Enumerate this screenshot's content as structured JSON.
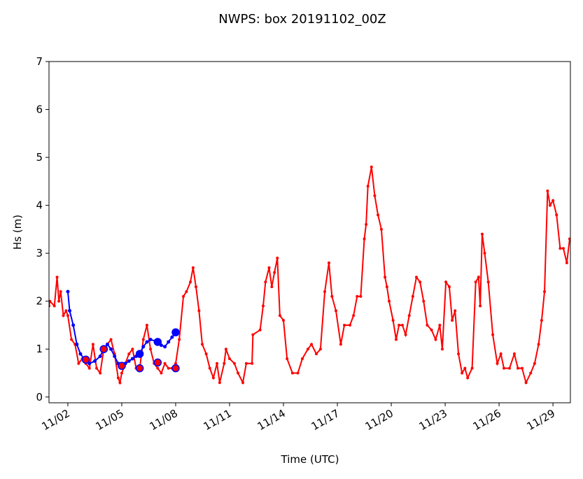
{
  "chart_data": {
    "type": "line",
    "title": "NWPS: box 20191102_00Z",
    "xlabel": "Time (UTC)",
    "ylabel": "Hs (m)",
    "xlim": [
      0.95,
      29.97
    ],
    "ylim": [
      -0.12,
      7.0
    ],
    "xticks": [
      {
        "value": 2,
        "label": "11/02"
      },
      {
        "value": 5,
        "label": "11/05"
      },
      {
        "value": 8,
        "label": "11/08"
      },
      {
        "value": 11,
        "label": "11/11"
      },
      {
        "value": 14,
        "label": "11/14"
      },
      {
        "value": 17,
        "label": "11/17"
      },
      {
        "value": 20,
        "label": "11/20"
      },
      {
        "value": 23,
        "label": "11/23"
      },
      {
        "value": 26,
        "label": "11/26"
      },
      {
        "value": 29,
        "label": "11/29"
      }
    ],
    "yticks": [
      0,
      1,
      2,
      3,
      4,
      5,
      6,
      7
    ],
    "series": [
      {
        "color": "#ff0000",
        "line": true,
        "marker_size": 2,
        "x": [
          0.95,
          1.0,
          1.25,
          1.4,
          1.5,
          1.6,
          1.75,
          1.9,
          2.0,
          2.2,
          2.4,
          2.6,
          2.8,
          3.0,
          3.2,
          3.4,
          3.6,
          3.8,
          4.0,
          4.2,
          4.4,
          4.6,
          4.8,
          4.9,
          5.0,
          5.2,
          5.4,
          5.6,
          5.8,
          6.0,
          6.2,
          6.4,
          6.6,
          6.8,
          7.0,
          7.2,
          7.4,
          7.6,
          7.8,
          8.0,
          8.2,
          8.43,
          8.6,
          8.82,
          8.97,
          9.13,
          9.3,
          9.48,
          9.7,
          9.9,
          10.1,
          10.3,
          10.45,
          10.7,
          10.8,
          11.0,
          11.27,
          11.47,
          11.74,
          11.93,
          12.25,
          12.3,
          12.7,
          12.87,
          13.0,
          13.2,
          13.35,
          13.5,
          13.66,
          13.8,
          14.0,
          14.2,
          14.5,
          14.8,
          15.05,
          15.36,
          15.56,
          15.83,
          16.06,
          16.3,
          16.53,
          16.7,
          16.92,
          17.19,
          17.39,
          17.7,
          17.9,
          18.1,
          18.3,
          18.5,
          18.6,
          18.7,
          18.9,
          19.08,
          19.26,
          19.45,
          19.65,
          19.76,
          19.88,
          20.1,
          20.27,
          20.43,
          20.62,
          20.8,
          21.0,
          21.2,
          21.4,
          21.6,
          21.8,
          22.0,
          22.24,
          22.47,
          22.7,
          22.84,
          23.04,
          23.23,
          23.39,
          23.55,
          23.74,
          23.94,
          24.1,
          24.25,
          24.5,
          24.7,
          24.86,
          24.95,
          25.06,
          25.2,
          25.4,
          25.65,
          25.9,
          26.1,
          26.27,
          26.58,
          26.85,
          27.05,
          27.28,
          27.5,
          27.76,
          27.98,
          28.2,
          28.37,
          28.53,
          28.7,
          28.84,
          29.0,
          29.2,
          29.4,
          29.58,
          29.77,
          29.93
        ],
        "values": [
          1.9,
          2.0,
          1.9,
          2.5,
          2.0,
          2.2,
          1.7,
          1.8,
          1.7,
          1.2,
          1.1,
          0.7,
          0.8,
          0.7,
          0.6,
          1.1,
          0.6,
          0.5,
          1.0,
          1.1,
          1.2,
          0.9,
          0.4,
          0.3,
          0.5,
          0.7,
          0.9,
          1.0,
          0.6,
          0.6,
          1.2,
          1.5,
          1.0,
          0.7,
          0.6,
          0.5,
          0.7,
          0.6,
          0.6,
          0.7,
          1.2,
          2.1,
          2.2,
          2.4,
          2.7,
          2.3,
          1.8,
          1.1,
          0.9,
          0.6,
          0.4,
          0.7,
          0.3,
          0.7,
          1.0,
          0.8,
          0.7,
          0.5,
          0.3,
          0.7,
          0.7,
          1.3,
          1.4,
          1.9,
          2.4,
          2.7,
          2.3,
          2.6,
          2.9,
          1.7,
          1.6,
          0.8,
          0.5,
          0.5,
          0.8,
          1.0,
          1.1,
          0.9,
          1.0,
          2.2,
          2.8,
          2.1,
          1.8,
          1.1,
          1.5,
          1.5,
          1.7,
          2.1,
          2.1,
          3.3,
          3.6,
          4.4,
          4.8,
          4.2,
          3.8,
          3.5,
          2.5,
          2.3,
          2.0,
          1.6,
          1.2,
          1.5,
          1.5,
          1.3,
          1.7,
          2.1,
          2.5,
          2.4,
          2.0,
          1.5,
          1.4,
          1.2,
          1.5,
          1.0,
          2.4,
          2.3,
          1.6,
          1.8,
          0.9,
          0.5,
          0.6,
          0.4,
          0.6,
          2.4,
          2.5,
          1.9,
          3.4,
          3.0,
          2.4,
          1.3,
          0.7,
          0.9,
          0.6,
          0.6,
          0.9,
          0.6,
          0.6,
          0.3,
          0.5,
          0.7,
          1.1,
          1.6,
          2.2,
          4.3,
          4.0,
          4.1,
          3.8,
          3.1,
          3.1,
          2.8,
          3.3
        ]
      },
      {
        "color": "#0000ff",
        "line": true,
        "marker_size": 2.5,
        "x": [
          2.0,
          2.1,
          2.3,
          2.5,
          2.7,
          2.9,
          3.0,
          3.2,
          3.5,
          3.8,
          4.0,
          4.2,
          4.4,
          4.6,
          4.8,
          5.0,
          5.2,
          5.4,
          5.6,
          5.8,
          6.0,
          6.2,
          6.4,
          6.6,
          7.0,
          7.2,
          7.4,
          7.6,
          7.8,
          8.0
        ],
        "values": [
          2.2,
          1.8,
          1.5,
          1.1,
          0.9,
          0.8,
          0.78,
          0.7,
          0.75,
          0.85,
          1.0,
          1.1,
          1.0,
          0.85,
          0.7,
          0.65,
          0.7,
          0.75,
          0.8,
          0.85,
          0.9,
          1.05,
          1.15,
          1.2,
          1.15,
          1.08,
          1.05,
          1.15,
          1.25,
          1.35
        ]
      },
      {
        "color": "#0000ff",
        "line": false,
        "marker_size": 5,
        "edge": "#0000ff",
        "x": [
          3.0,
          4.0,
          5.0,
          6.0,
          7.0,
          8.0
        ],
        "values": [
          0.78,
          1.0,
          0.65,
          0.9,
          1.15,
          1.35
        ]
      },
      {
        "color": "#ff0000",
        "line": false,
        "marker_size": 5,
        "edge": "#0000ff",
        "x": [
          3.0,
          4.0,
          5.0,
          6.0,
          7.0,
          8.0
        ],
        "values": [
          0.78,
          1.0,
          0.65,
          0.6,
          0.72,
          0.6
        ]
      }
    ]
  }
}
